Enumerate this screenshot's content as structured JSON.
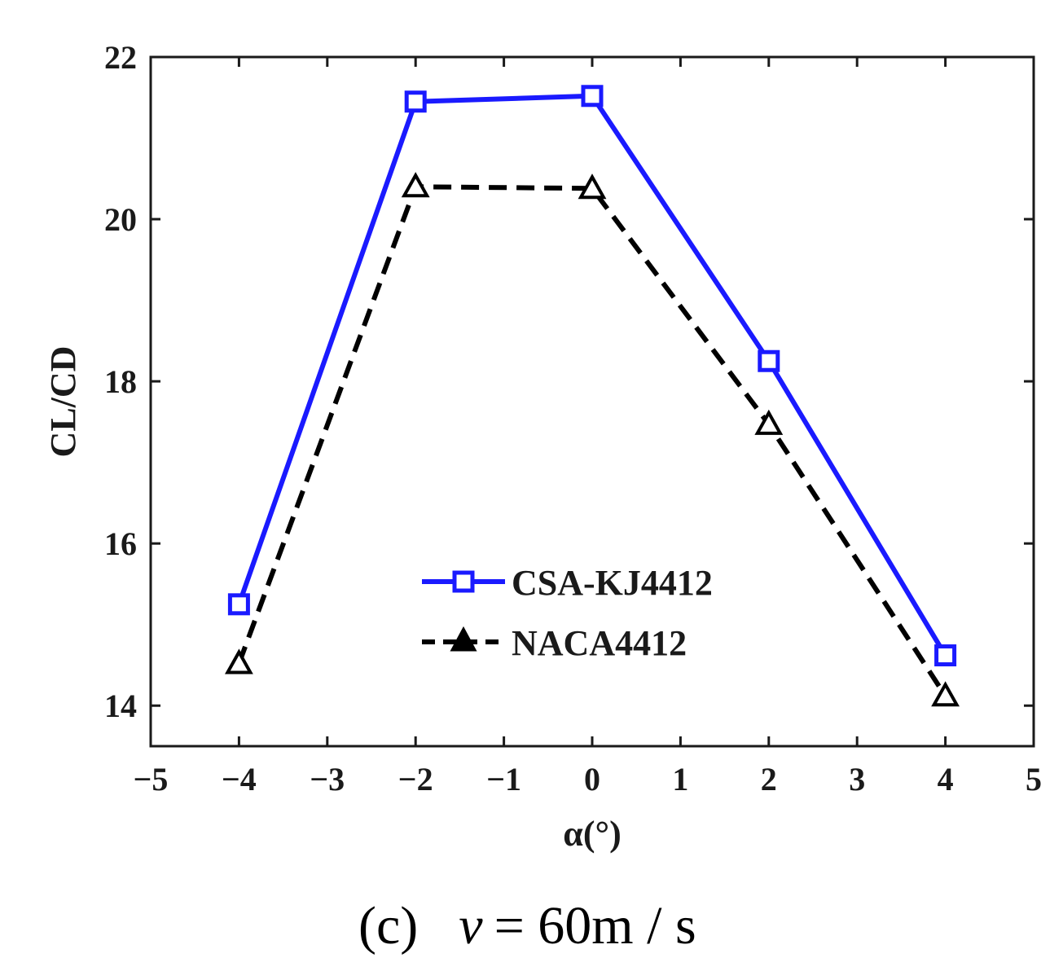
{
  "chart_data": {
    "type": "line",
    "title": "",
    "xlabel": "α(°)",
    "ylabel": "CL/CD",
    "xlim": [
      -5,
      5
    ],
    "ylim": [
      13.5,
      22
    ],
    "xticks": [
      -5,
      -4,
      -3,
      -2,
      -1,
      0,
      1,
      2,
      3,
      4,
      5
    ],
    "yticks": [
      14,
      16,
      18,
      20,
      22
    ],
    "xtick_labels": [
      "−5",
      "−4",
      "−3",
      "−2",
      "−1",
      "0",
      "1",
      "2",
      "3",
      "4",
      "5"
    ],
    "ytick_labels": [
      "14",
      "16",
      "18",
      "20",
      "22"
    ],
    "grid": false,
    "legend_position": "center",
    "x": [
      -4,
      -2,
      0,
      2,
      4
    ],
    "series": [
      {
        "name": "CSA-KJ4412",
        "values": [
          15.25,
          21.45,
          21.52,
          18.25,
          14.62
        ],
        "color": "#1a1aff",
        "line": "solid",
        "marker": "square"
      },
      {
        "name": "NACA4412",
        "values": [
          14.52,
          20.4,
          20.38,
          17.47,
          14.12
        ],
        "color": "#000000",
        "line": "dashed",
        "marker": "triangle"
      }
    ]
  },
  "caption": {
    "label": "(c)",
    "variable": "v",
    "equation": "= 60m / s"
  }
}
